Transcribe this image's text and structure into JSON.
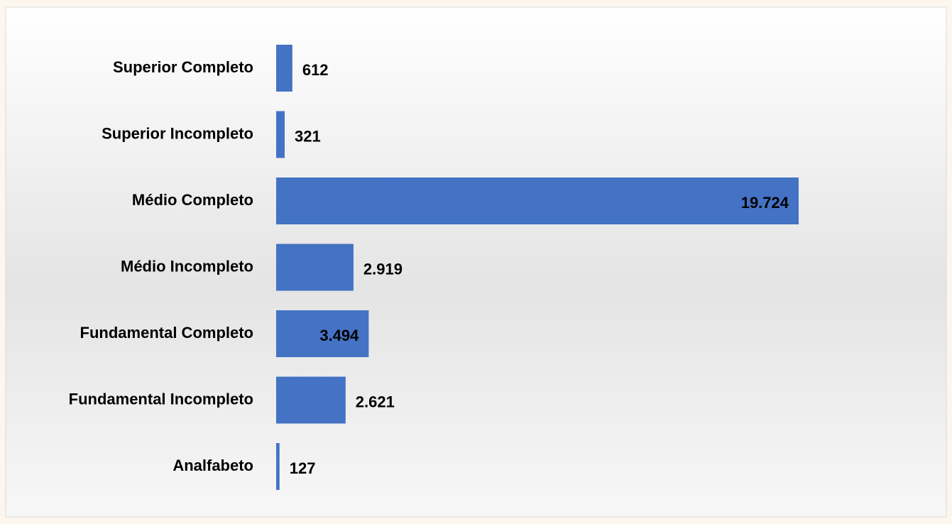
{
  "chart_data": {
    "type": "bar",
    "orientation": "horizontal",
    "categories": [
      "Superior Completo",
      "Superior Incompleto",
      "Médio Completo",
      "Médio Incompleto",
      "Fundamental Completo",
      "Fundamental Incompleto",
      "Analfabeto"
    ],
    "values": [
      612,
      321,
      19724,
      2919,
      3494,
      2621,
      127
    ],
    "value_labels": [
      "612",
      "321",
      "19.724",
      "2.919",
      "3.494",
      "2.621",
      "127"
    ],
    "color": "#4472c4"
  }
}
